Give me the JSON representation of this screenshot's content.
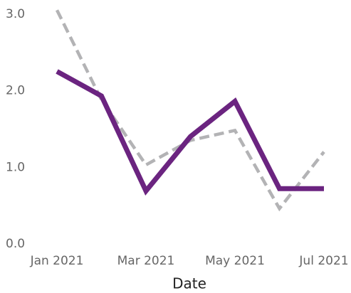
{
  "chart_data": {
    "type": "line",
    "x_label": "Date",
    "categories": [
      "Jan 2021",
      null,
      "Mar 2021",
      null,
      "May 2021",
      null,
      "Jul 2021"
    ],
    "series": [
      {
        "color": "#b3b3b5",
        "dash": true,
        "values": [
          3.07,
          1.9,
          1.05,
          1.37,
          1.5,
          0.48,
          1.22
        ]
      },
      {
        "color": "#6b2480",
        "dash": false,
        "values": [
          2.27,
          1.95,
          0.71,
          1.42,
          1.88,
          0.74,
          0.74
        ]
      }
    ],
    "ylim": [
      0,
      3.1
    ],
    "yticks": [
      {
        "value": 0,
        "label": "0.0"
      },
      {
        "value": 1,
        "label": "1.0"
      },
      {
        "value": 2,
        "label": "2.0"
      },
      {
        "value": 3,
        "label": "3.0"
      }
    ],
    "grid": false
  }
}
